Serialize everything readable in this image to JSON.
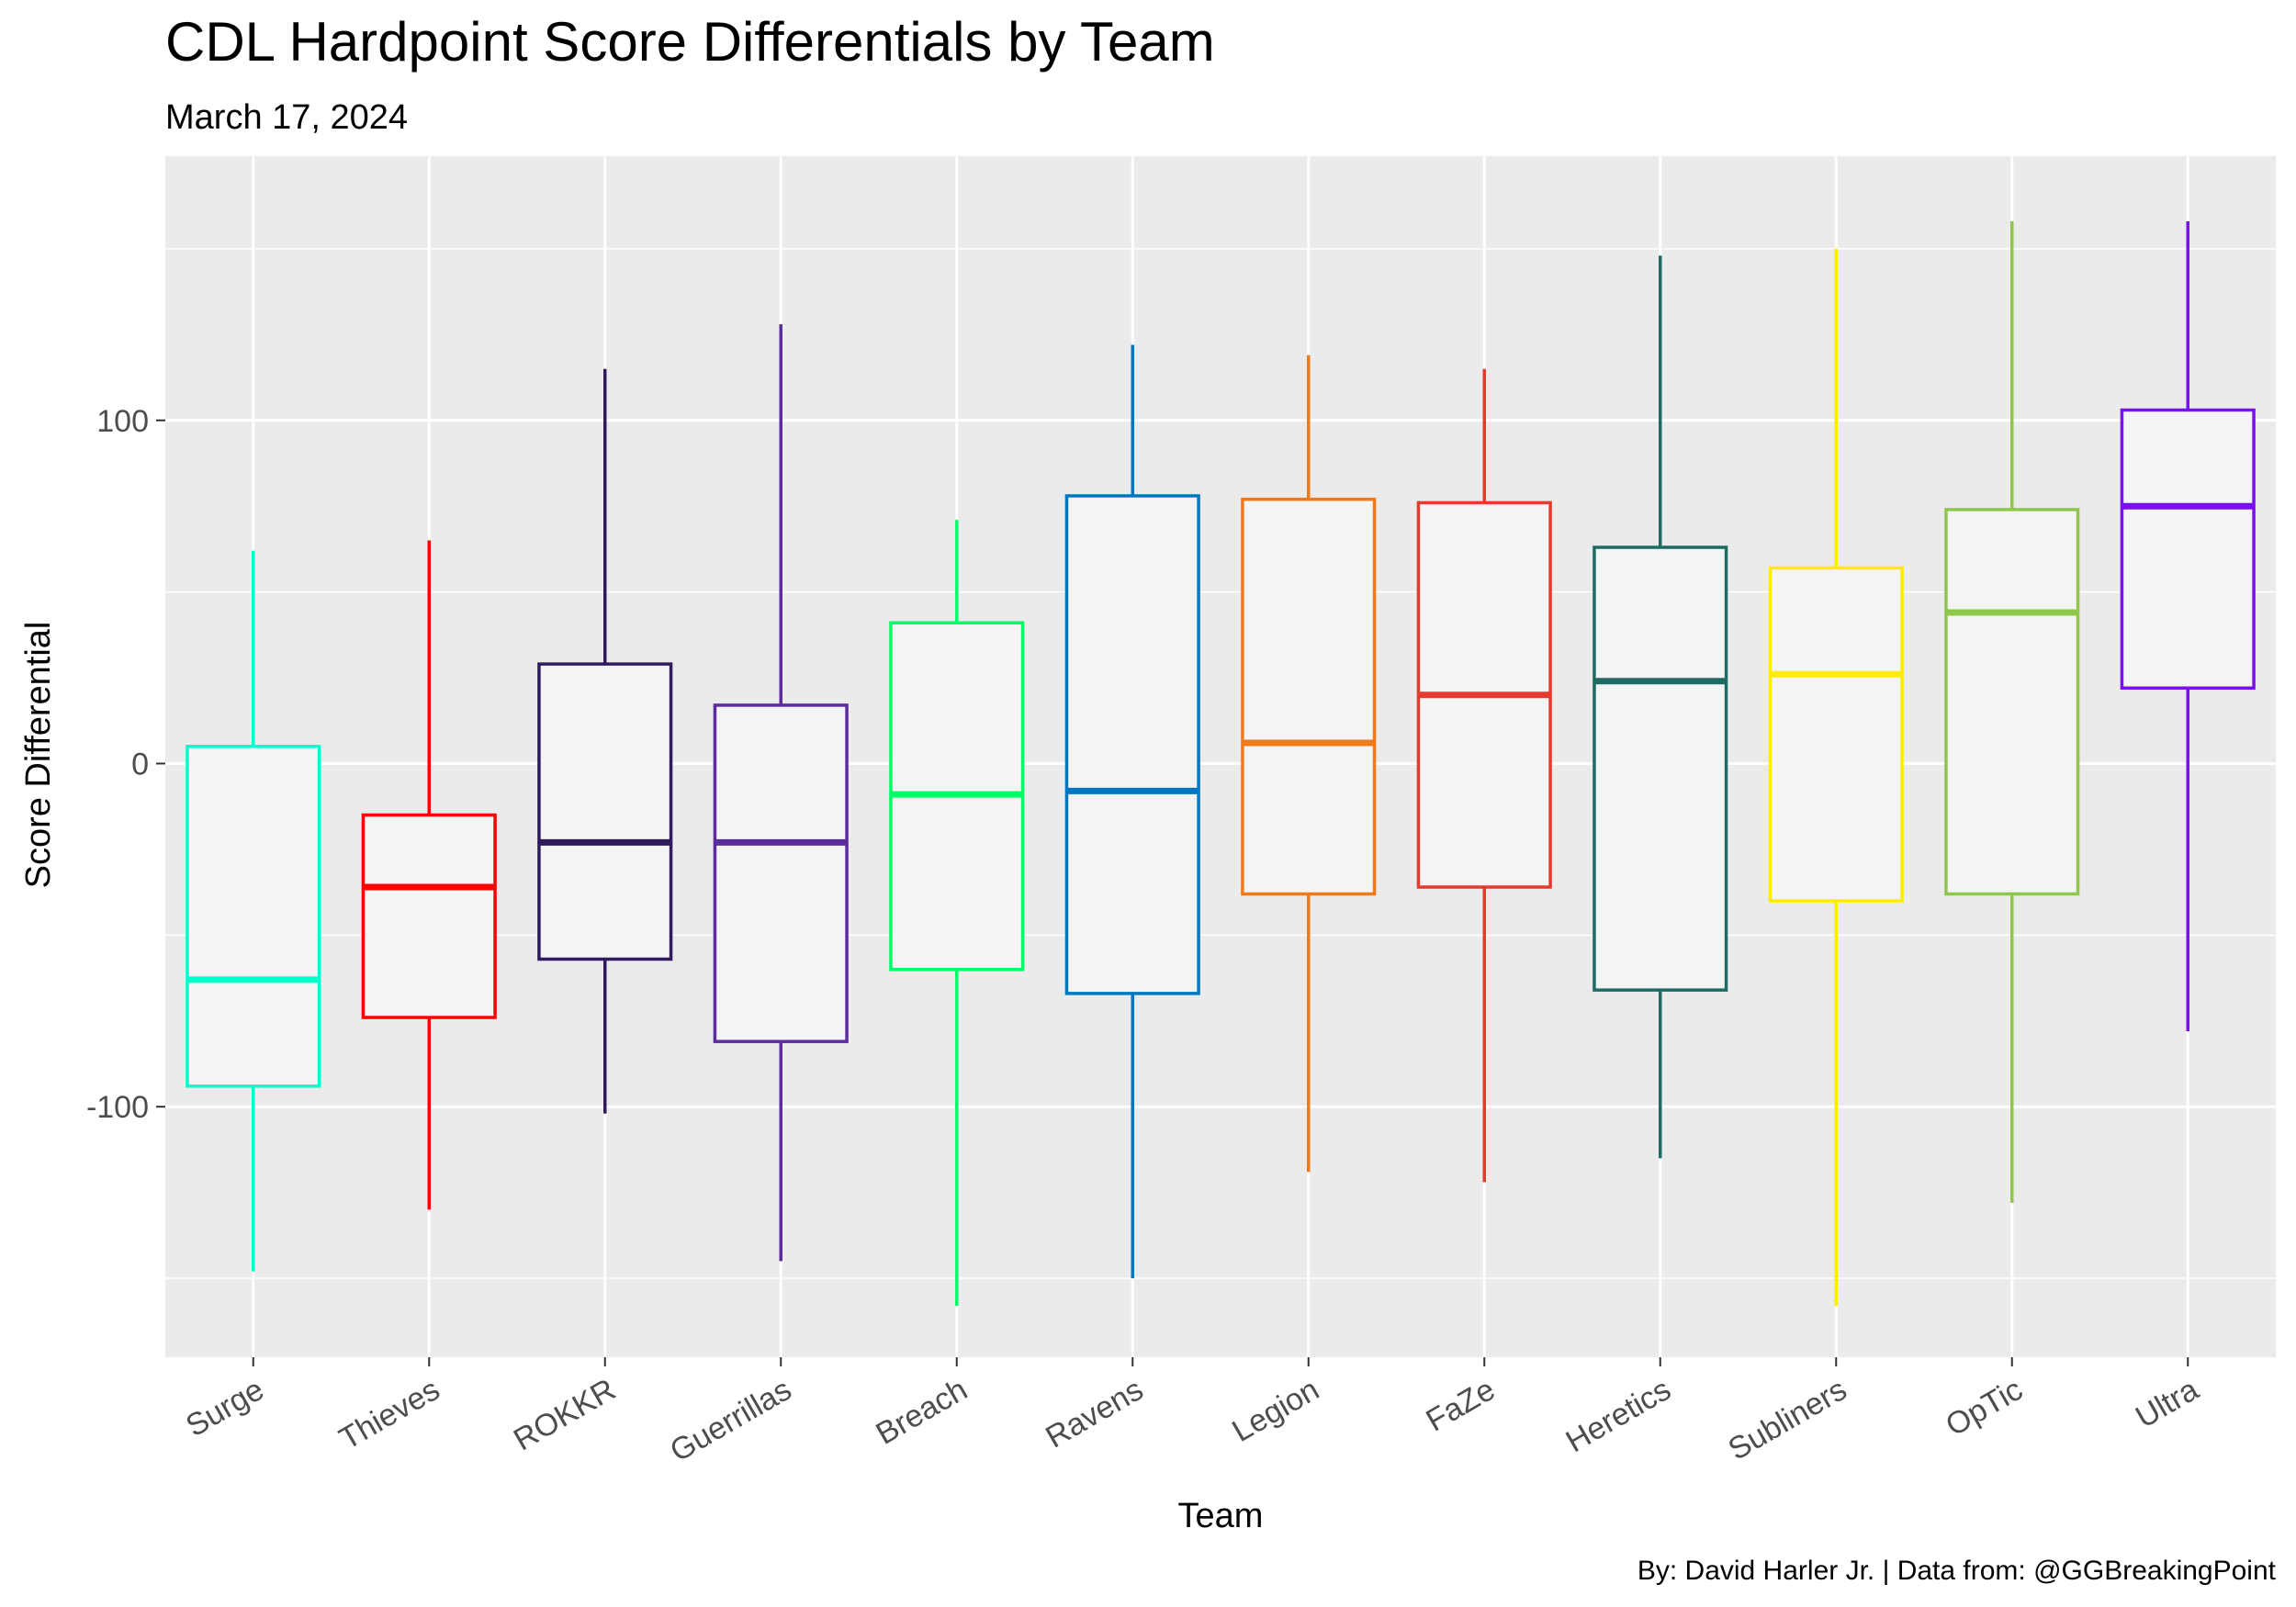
{
  "chart_data": {
    "type": "boxplot",
    "title": "CDL Hardpoint Score Differentials by Team",
    "subtitle": "March 17, 2024",
    "xlabel": "Team",
    "ylabel": "Score Differential",
    "caption": "By: David Harler Jr. | Data from: @GGBreakingPoint",
    "ylim": [
      -173,
      177
    ],
    "yticks": [
      -100,
      0,
      100
    ],
    "grid": true,
    "panel_background": "#ebebeb",
    "box_fill": "#f4f4f4",
    "series": [
      {
        "name": "Surge",
        "color": "#00ffcc",
        "min": -148,
        "q1": -94,
        "median": -63,
        "q3": 5,
        "max": 62
      },
      {
        "name": "Thieves",
        "color": "#ff0000",
        "min": -130,
        "q1": -74,
        "median": -36,
        "q3": -15,
        "max": 65
      },
      {
        "name": "ROKKR",
        "color": "#2e1a5c",
        "min": -102,
        "q1": -57,
        "median": -23,
        "q3": 29,
        "max": 115
      },
      {
        "name": "Guerrillas",
        "color": "#5b2c9e",
        "min": -145,
        "q1": -81,
        "median": -23,
        "q3": 17,
        "max": 128
      },
      {
        "name": "Breach",
        "color": "#00ff66",
        "min": -158,
        "q1": -60,
        "median": -9,
        "q3": 41,
        "max": 71
      },
      {
        "name": "Ravens",
        "color": "#0077c0",
        "min": -150,
        "q1": -67,
        "median": -8,
        "q3": 78,
        "max": 122
      },
      {
        "name": "Legion",
        "color": "#f07a1a",
        "min": -119,
        "q1": -38,
        "median": 6,
        "q3": 77,
        "max": 119
      },
      {
        "name": "FaZe",
        "color": "#e63a2e",
        "min": -122,
        "q1": -36,
        "median": 20,
        "q3": 76,
        "max": 115
      },
      {
        "name": "Heretics",
        "color": "#1e6b63",
        "min": -115,
        "q1": -66,
        "median": 24,
        "q3": 63,
        "max": 148
      },
      {
        "name": "Subliners",
        "color": "#ffec00",
        "min": -158,
        "q1": -40,
        "median": 26,
        "q3": 57,
        "max": 150
      },
      {
        "name": "OpTic",
        "color": "#8fc74a",
        "min": -128,
        "q1": -38,
        "median": 44,
        "q3": 74,
        "max": 158
      },
      {
        "name": "Ultra",
        "color": "#7a0ff0",
        "min": -78,
        "q1": 22,
        "median": 75,
        "q3": 103,
        "max": 158
      }
    ]
  }
}
